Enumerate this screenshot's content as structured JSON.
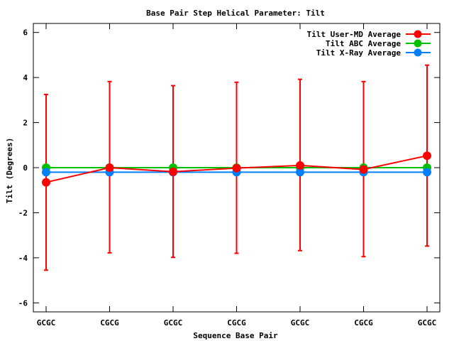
{
  "chart_data": {
    "type": "line",
    "title": "Base Pair Step Helical Parameter: Tilt",
    "xlabel": "Sequence Base Pair",
    "ylabel": "Tilt (Degrees)",
    "categories": [
      "GCGC",
      "CGCG",
      "GCGC",
      "CGCG",
      "GCGC",
      "CGCG",
      "GCGC"
    ],
    "ylim": [
      -6.4,
      6.4
    ],
    "yticks": [
      -6,
      -4,
      -2,
      0,
      2,
      4,
      6
    ],
    "grid": false,
    "legend_position": "top-right",
    "series": [
      {
        "name": "Tilt User-MD Average",
        "color": "#ff0000",
        "values": [
          -0.65,
          0.0,
          -0.18,
          -0.02,
          0.1,
          -0.08,
          0.53
        ],
        "error_low": [
          -4.55,
          -3.78,
          -3.98,
          -3.8,
          -3.68,
          -3.95,
          -3.48
        ],
        "error_high": [
          3.25,
          3.82,
          3.64,
          3.79,
          3.92,
          3.82,
          4.55
        ]
      },
      {
        "name": "Tilt ABC Average",
        "color": "#00c000",
        "values": [
          0.0,
          0.0,
          0.0,
          0.0,
          0.0,
          0.0,
          0.0
        ]
      },
      {
        "name": "Tilt X-Ray Average",
        "color": "#0080ff",
        "values": [
          -0.2,
          -0.2,
          -0.2,
          -0.2,
          -0.2,
          -0.2,
          -0.2
        ]
      }
    ]
  }
}
